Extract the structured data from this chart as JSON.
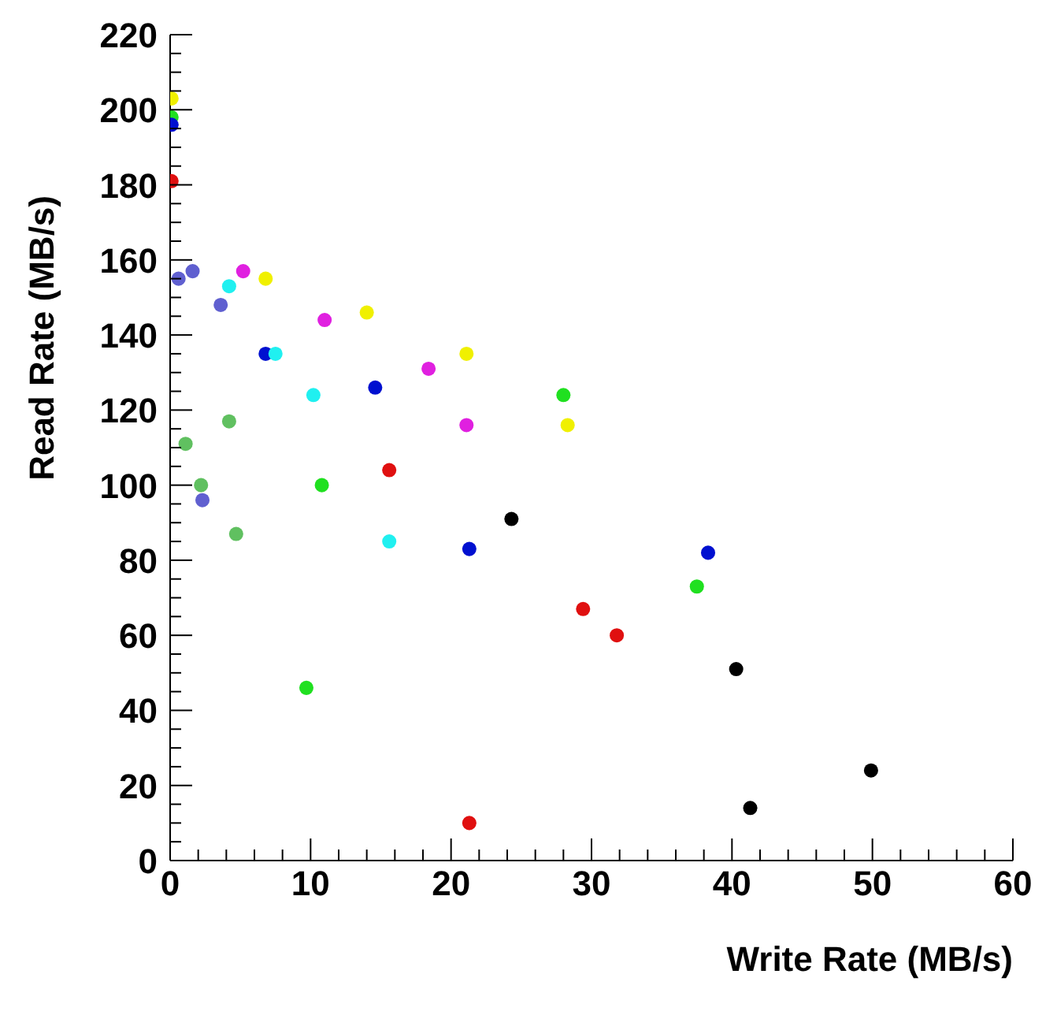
{
  "chart_data": {
    "type": "scatter",
    "xlabel": "Write Rate (MB/s)",
    "ylabel": "Read Rate (MB/s)",
    "xlim": [
      0,
      60
    ],
    "ylim": [
      0,
      220
    ],
    "xticks": [
      0,
      {
        "value": 2,
        "label": null
      },
      {
        "value": 4,
        "label": null
      },
      {
        "value": 6,
        "label": null
      },
      {
        "value": 8,
        "label": null
      },
      10,
      {
        "value": 12,
        "label": null
      },
      {
        "value": 14,
        "label": null
      },
      {
        "value": 16,
        "label": null
      },
      {
        "value": 18,
        "label": null
      },
      20,
      {
        "value": 22,
        "label": null
      },
      {
        "value": 24,
        "label": null
      },
      {
        "value": 26,
        "label": null
      },
      {
        "value": 28,
        "label": null
      },
      30,
      {
        "value": 32,
        "label": null
      },
      {
        "value": 34,
        "label": null
      },
      {
        "value": 36,
        "label": null
      },
      {
        "value": 38,
        "label": null
      },
      40,
      {
        "value": 42,
        "label": null
      },
      {
        "value": 44,
        "label": null
      },
      {
        "value": 46,
        "label": null
      },
      {
        "value": 48,
        "label": null
      },
      50,
      {
        "value": 52,
        "label": null
      },
      {
        "value": 54,
        "label": null
      },
      {
        "value": 56,
        "label": null
      },
      {
        "value": 58,
        "label": null
      },
      60
    ],
    "yticks": [
      0,
      {
        "value": 5,
        "label": null
      },
      {
        "value": 10,
        "label": null
      },
      {
        "value": 15,
        "label": null
      },
      20,
      {
        "value": 25,
        "label": null
      },
      {
        "value": 30,
        "label": null
      },
      {
        "value": 35,
        "label": null
      },
      40,
      {
        "value": 45,
        "label": null
      },
      {
        "value": 50,
        "label": null
      },
      {
        "value": 55,
        "label": null
      },
      60,
      {
        "value": 65,
        "label": null
      },
      {
        "value": 70,
        "label": null
      },
      {
        "value": 75,
        "label": null
      },
      80,
      {
        "value": 85,
        "label": null
      },
      {
        "value": 90,
        "label": null
      },
      {
        "value": 95,
        "label": null
      },
      100,
      {
        "value": 105,
        "label": null
      },
      {
        "value": 110,
        "label": null
      },
      {
        "value": 115,
        "label": null
      },
      120,
      {
        "value": 125,
        "label": null
      },
      {
        "value": 130,
        "label": null
      },
      {
        "value": 135,
        "label": null
      },
      140,
      {
        "value": 145,
        "label": null
      },
      {
        "value": 150,
        "label": null
      },
      {
        "value": 155,
        "label": null
      },
      160,
      {
        "value": 165,
        "label": null
      },
      {
        "value": 170,
        "label": null
      },
      {
        "value": 175,
        "label": null
      },
      180,
      {
        "value": 185,
        "label": null
      },
      {
        "value": 190,
        "label": null
      },
      {
        "value": 195,
        "label": null
      },
      200,
      {
        "value": 205,
        "label": null
      },
      {
        "value": 210,
        "label": null
      },
      {
        "value": 215,
        "label": null
      },
      220
    ],
    "grid": false,
    "legend": false,
    "marker": "circle",
    "series": [
      {
        "color": "#f0f000",
        "x": [
          0.1,
          6.8,
          14,
          21.1,
          28.3
        ],
        "values": [
          203,
          155,
          146,
          135,
          116
        ]
      },
      {
        "color": "#20e020",
        "x": [
          0.1,
          28,
          10.8,
          9.7,
          37.5
        ],
        "values": [
          198,
          124,
          100,
          46,
          73
        ]
      },
      {
        "color": "#0010d0",
        "x": [
          0.1,
          6.8,
          14.6,
          21.3,
          38.3
        ],
        "values": [
          196,
          135,
          126,
          83,
          82
        ]
      },
      {
        "color": "#e01010",
        "x": [
          0.1,
          15.6,
          29.4,
          31.8,
          21.3
        ],
        "values": [
          181,
          104,
          67,
          60,
          10
        ]
      },
      {
        "color": "#e020e0",
        "x": [
          5.2,
          11,
          18.4,
          21.1
        ],
        "values": [
          157,
          144,
          131,
          116
        ]
      },
      {
        "color": "#20f0f0",
        "x": [
          4.2,
          7.5,
          10.2,
          15.6
        ],
        "values": [
          153,
          135,
          124,
          85
        ]
      },
      {
        "color": "#6060d0",
        "x": [
          0.6,
          1.6,
          3.6,
          2.3
        ],
        "values": [
          155,
          157,
          148,
          96
        ]
      },
      {
        "color": "#60c060",
        "x": [
          1.1,
          2.2,
          4.2,
          4.7
        ],
        "values": [
          111,
          100,
          117,
          87
        ]
      },
      {
        "color": "#000000",
        "x": [
          24.3,
          40.3,
          41.3,
          49.9
        ],
        "values": [
          91,
          51,
          14,
          24
        ]
      }
    ]
  }
}
